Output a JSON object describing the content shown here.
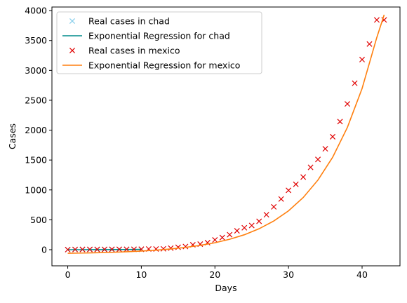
{
  "chart_data": {
    "type": "scatter",
    "title": "",
    "xlabel": "Days",
    "ylabel": "Cases",
    "xlim": [
      -2.15,
      45.15
    ],
    "ylim": [
      -270,
      4060
    ],
    "xticks": [
      0,
      10,
      20,
      30,
      40
    ],
    "yticks": [
      0,
      500,
      1000,
      1500,
      2000,
      2500,
      3000,
      3500,
      4000
    ],
    "grid": false,
    "legend": {
      "placement": "top-left"
    },
    "series": [
      {
        "name": "Real cases in chad",
        "kind": "scatter",
        "marker": "x",
        "color": "#87ceeb",
        "x": [
          0,
          1,
          2,
          3,
          4,
          5,
          6,
          7,
          8,
          9,
          10
        ],
        "y": [
          1,
          1,
          1,
          1,
          1,
          1,
          1,
          3,
          3,
          5,
          5
        ]
      },
      {
        "name": "Exponential Regression for chad",
        "kind": "line",
        "color": "#008b8b",
        "x": [
          0,
          1,
          2,
          3,
          4,
          5,
          6,
          7,
          8,
          9,
          10
        ],
        "y": [
          0,
          0,
          0,
          1,
          1,
          1,
          2,
          2,
          3,
          4,
          5
        ]
      },
      {
        "name": "Real cases in mexico",
        "kind": "scatter",
        "marker": "x",
        "color": "#e00000",
        "x": [
          0,
          1,
          2,
          3,
          4,
          5,
          6,
          7,
          8,
          9,
          10,
          11,
          12,
          13,
          14,
          15,
          16,
          17,
          18,
          19,
          20,
          21,
          22,
          23,
          24,
          25,
          26,
          27,
          28,
          29,
          30,
          31,
          32,
          33,
          34,
          35,
          36,
          37,
          38,
          39,
          40,
          41,
          42,
          43
        ],
        "y": [
          1,
          4,
          5,
          5,
          5,
          6,
          7,
          7,
          7,
          7,
          8,
          12,
          12,
          15,
          26,
          41,
          53,
          82,
          93,
          118,
          164,
          203,
          251,
          316,
          367,
          405,
          475,
          585,
          717,
          848,
          993,
          1094,
          1215,
          1378,
          1510,
          1688,
          1890,
          2143,
          2439,
          2785,
          3181,
          3441,
          3844,
          3844
        ]
      },
      {
        "name": "Exponential Regression for mexico",
        "kind": "line",
        "color": "#ff7f0e",
        "x": [
          0,
          2,
          4,
          6,
          8,
          10,
          12,
          14,
          16,
          18,
          20,
          22,
          24,
          26,
          28,
          30,
          32,
          34,
          36,
          38,
          40,
          42,
          43
        ],
        "y": [
          -60,
          -56,
          -51,
          -44,
          -35,
          -23,
          -8,
          12,
          38,
          72,
          116,
          174,
          250,
          350,
          480,
          650,
          873,
          1165,
          1546,
          2045,
          2697,
          3550,
          3930
        ]
      }
    ]
  }
}
